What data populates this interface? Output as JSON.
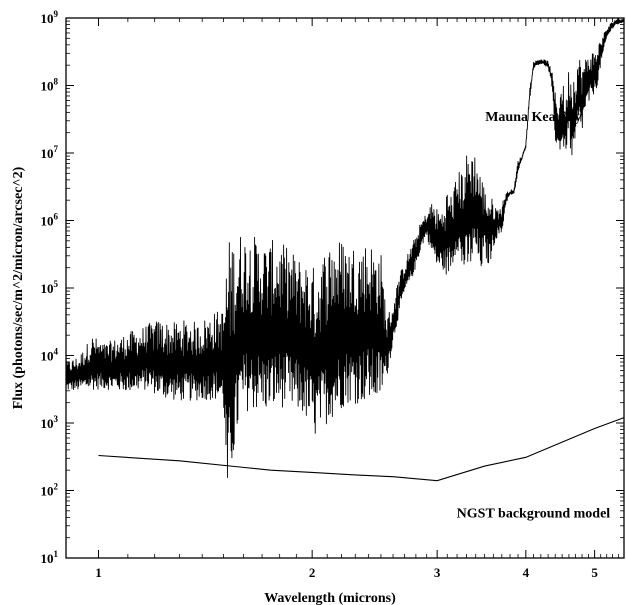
{
  "chart_data": {
    "type": "line",
    "title": "",
    "xlabel": "Wavelength (microns)",
    "ylabel": "Flux (photons/sec/m^2/micron/arcsec^2)",
    "xscale": "log",
    "yscale": "log",
    "xlim": [
      0.9,
      5.5
    ],
    "ylim": [
      10,
      1000000000
    ],
    "xticks": [
      1,
      2,
      3,
      4,
      5
    ],
    "yticks": [
      {
        "value": 10,
        "base": "10",
        "exp": "1"
      },
      {
        "value": 100,
        "base": "10",
        "exp": "2"
      },
      {
        "value": 1000,
        "base": "10",
        "exp": "3"
      },
      {
        "value": 10000,
        "base": "10",
        "exp": "4"
      },
      {
        "value": 100000,
        "base": "10",
        "exp": "5"
      },
      {
        "value": 1000000,
        "base": "10",
        "exp": "6"
      },
      {
        "value": 10000000,
        "base": "10",
        "exp": "7"
      },
      {
        "value": 100000000,
        "base": "10",
        "exp": "8"
      },
      {
        "value": 1000000000,
        "base": "10",
        "exp": "9"
      }
    ],
    "grid": false,
    "annotations": [
      {
        "text": "Mauna Kea Sky",
        "x": 4.1,
        "y": 30000000
      },
      {
        "text": "NGST background model",
        "x": 4.1,
        "y": 40
      }
    ],
    "series": [
      {
        "x": [
          0.9,
          0.94,
          0.98,
          1.02,
          1.06,
          1.1,
          1.14,
          1.18,
          1.22,
          1.26,
          1.3,
          1.34,
          1.38,
          1.42,
          1.46,
          1.5,
          1.52,
          1.54,
          1.56,
          1.58,
          1.62,
          1.66,
          1.7,
          1.74,
          1.78,
          1.82,
          1.86,
          1.9,
          1.94,
          1.98,
          2.02,
          2.06,
          2.1,
          2.14,
          2.18,
          2.22,
          2.26,
          2.3,
          2.34,
          2.38,
          2.42,
          2.46,
          2.5,
          2.55,
          2.6,
          2.65,
          2.7,
          2.75,
          2.8,
          2.85,
          2.9,
          2.95,
          3.0,
          3.05,
          3.1,
          3.15,
          3.2,
          3.25,
          3.3,
          3.35,
          3.4,
          3.45,
          3.5,
          3.55,
          3.6,
          3.65,
          3.7,
          3.75,
          3.8,
          3.85,
          3.9,
          3.95,
          4.0,
          4.05,
          4.1,
          4.15,
          4.2,
          4.25,
          4.3,
          4.35,
          4.4,
          4.45,
          4.5,
          4.55,
          4.6,
          4.65,
          4.7,
          4.75,
          4.8,
          4.85,
          4.9,
          4.95,
          5.0,
          5.05,
          5.1,
          5.15,
          5.2,
          5.25,
          5.3,
          5.35,
          5.4,
          5.45,
          5.5
        ],
        "y_low": [
          3000,
          3000,
          3100,
          3200,
          3000,
          2900,
          3000,
          3100,
          2400,
          2200,
          2100,
          2100,
          2150,
          2200,
          2200,
          1800,
          40,
          200,
          400,
          1000,
          1500,
          1500,
          1500,
          1400,
          1600,
          1700,
          1500,
          1400,
          1300,
          900,
          600,
          800,
          1000,
          1200,
          1400,
          1800,
          2000,
          1900,
          2000,
          2000,
          2000,
          2000,
          2200,
          5000,
          15000,
          40000,
          80000,
          120000,
          200000,
          400000,
          600000,
          300000,
          200000,
          180000,
          150000,
          200000,
          400000,
          180000,
          150000,
          200000,
          300000,
          150000,
          300000,
          200000,
          400000,
          600000,
          600000,
          1800000,
          2400000,
          2400000,
          5000000,
          8000000,
          12000000,
          60000000,
          180000000,
          200000000,
          210000000,
          200000000,
          180000000,
          100000000,
          15000000,
          10000000,
          12000000,
          10000000,
          20000000,
          5000000,
          12000000,
          25000000,
          20000000,
          40000000,
          50000000,
          60000000,
          80000000,
          100000000,
          200000000,
          300000000,
          500000000,
          600000000,
          700000000,
          800000000,
          800000000,
          800000000,
          900000000
        ],
        "y_high": [
          8000,
          10000,
          20000,
          15000,
          18000,
          22000,
          25000,
          30000,
          35000,
          30000,
          32000,
          35000,
          30000,
          38000,
          45000,
          50000,
          500000,
          600000,
          550000,
          700000,
          650000,
          600000,
          500000,
          480000,
          550000,
          450000,
          400000,
          300000,
          280000,
          250000,
          200000,
          300000,
          450000,
          600000,
          550000,
          550000,
          400000,
          500000,
          450000,
          500000,
          480000,
          400000,
          350000,
          40000,
          60000,
          150000,
          250000,
          400000,
          600000,
          1000000,
          1300000,
          2000000,
          1500000,
          1500000,
          3000000,
          2500000,
          5000000,
          6000000,
          10000000,
          13000000,
          10000000,
          6000000,
          3000000,
          2500000,
          2000000,
          1500000,
          1800000,
          2600000,
          2800000,
          3000000,
          8000000,
          9000000,
          14000000,
          90000000,
          220000000,
          240000000,
          250000000,
          240000000,
          230000000,
          170000000,
          80000000,
          60000000,
          150000000,
          50000000,
          200000000,
          150000000,
          200000000,
          300000000,
          200000000,
          250000000,
          300000000,
          350000000,
          300000000,
          400000000,
          500000000,
          600000000,
          700000000,
          800000000,
          900000000,
          950000000,
          1000000000,
          1000000000,
          1000000000
        ]
      },
      {
        "x": [
          1.0,
          1.3,
          1.6,
          1.75,
          2.0,
          2.3,
          2.6,
          3.0,
          3.5,
          4.0,
          4.5,
          5.0,
          5.5
        ],
        "y": [
          330,
          275,
          220,
          200,
          185,
          170,
          160,
          140,
          230,
          310,
          520,
          830,
          1200
        ]
      }
    ]
  }
}
